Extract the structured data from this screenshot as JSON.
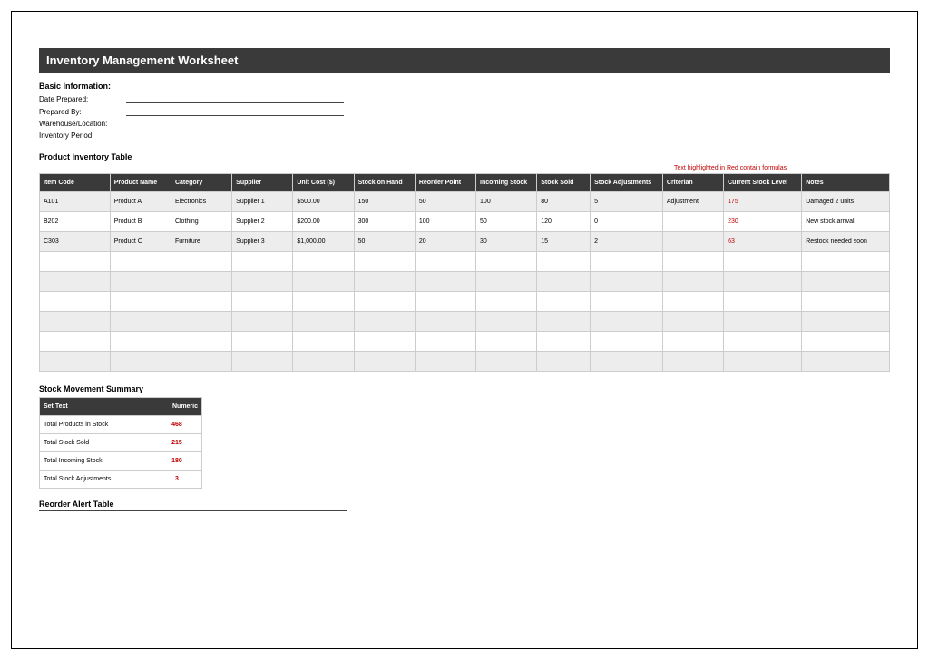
{
  "title": "Inventory Management Worksheet",
  "basic_info": {
    "heading": "Basic Information:",
    "date_prepared_label": "Date Prepared:",
    "prepared_by_label": "Prepared By:",
    "warehouse_label": "Warehouse/Location:",
    "period_label": "Inventory Period:"
  },
  "inventory_table": {
    "heading": "Product Inventory Table",
    "formula_note": "Text highlighted in Red contain formulas",
    "columns": [
      "Item Code",
      "Product Name",
      "Category",
      "Supplier",
      "Unit Cost ($)",
      "Stock on Hand",
      "Reorder Point",
      "Incoming Stock",
      "Stock Sold",
      "Stock Adjustments",
      "Criterian",
      "Current Stock Level",
      "Notes"
    ],
    "col_widths": [
      "74",
      "64",
      "64",
      "64",
      "64",
      "64",
      "64",
      "64",
      "56",
      "76",
      "64",
      "82",
      "92"
    ],
    "formula_col_index": 11,
    "rows": [
      [
        "A101",
        "Product A",
        "Electronics",
        "Supplier 1",
        "$500.00",
        "150",
        "50",
        "100",
        "80",
        "5",
        "Adjustment",
        "175",
        "Damaged 2 units"
      ],
      [
        "B202",
        "Product B",
        "Clothing",
        "Supplier 2",
        "$200.00",
        "300",
        "100",
        "50",
        "120",
        "0",
        "",
        "230",
        "New stock arrival"
      ],
      [
        "C303",
        "Product C",
        "Furniture",
        "Supplier 3",
        "$1,000.00",
        "50",
        "20",
        "30",
        "15",
        "2",
        "",
        "63",
        "Restock needed soon"
      ]
    ],
    "empty_rows": 6
  },
  "summary": {
    "heading": "Stock Movement Summary",
    "col1": "Set Text",
    "col2": "Numeric",
    "rows": [
      {
        "label": "Total Products in Stock",
        "value": "468"
      },
      {
        "label": "Total Stock Sold",
        "value": "215"
      },
      {
        "label": "Total Incoming Stock",
        "value": "180"
      },
      {
        "label": "Total Stock Adjustments",
        "value": "3"
      }
    ]
  },
  "reorder": {
    "heading": "Reorder Alert Table"
  },
  "colors": {
    "header_bg": "#3a3a3a",
    "header_text": "#ffffff",
    "row_alt": "#ededed",
    "formula_text": "#c00000",
    "border": "#cccccc"
  }
}
